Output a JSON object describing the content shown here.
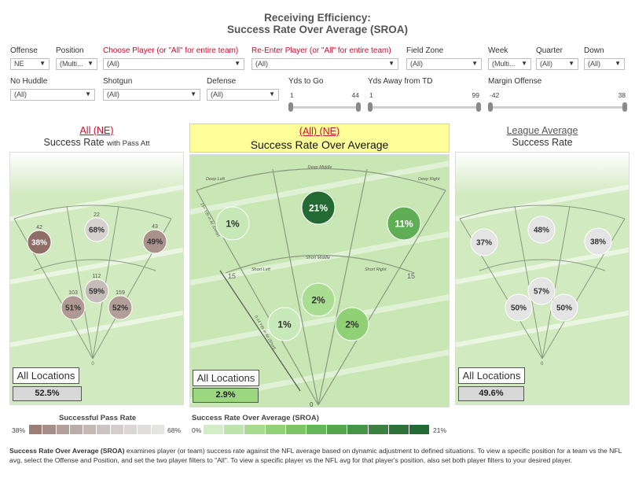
{
  "header": {
    "title_line1": "Receiving Efficiency:",
    "title_line2": "Success Rate Over Average (SROA)"
  },
  "filters_row1": [
    {
      "label": "Offense",
      "value": "NE",
      "red": false
    },
    {
      "label": "Position",
      "value": "(Multi...",
      "red": false
    },
    {
      "label": "Choose Player (or \"All\" for entire team)",
      "value": "(All)",
      "red": true
    },
    {
      "label": "Re-Enter Player (or \"All\" for entire team)",
      "value": "(All)",
      "red": true
    },
    {
      "label": "Field Zone",
      "value": "(All)",
      "red": false
    },
    {
      "label": "Week",
      "value": "(Multi...",
      "red": false
    },
    {
      "label": "Quarter",
      "value": "(All)",
      "red": false
    },
    {
      "label": "Down",
      "value": "(All)",
      "red": false
    }
  ],
  "filters_row2": [
    {
      "label": "No Huddle",
      "value": "(All)"
    },
    {
      "label": "Shotgun",
      "value": "(All)"
    },
    {
      "label": "Defense",
      "value": "(All)"
    }
  ],
  "sliders": [
    {
      "label": "Yds to Go",
      "min": "1",
      "max": "44"
    },
    {
      "label": "Yds Away from TD",
      "min": "1",
      "max": "99"
    },
    {
      "label": "Margin Offense",
      "min": "-42",
      "max": "38"
    }
  ],
  "panels": {
    "left": {
      "title_link": "All (NE)",
      "subtitle": "Success Rate",
      "subtitle_small": "with Pass Att",
      "all_locations_label": "All Locations",
      "total": "52.5%",
      "zones": [
        {
          "id": "deep-left",
          "pct": "38%",
          "count": "42",
          "pct_value": 38,
          "color": "#8e6e66"
        },
        {
          "id": "deep-middle",
          "pct": "68%",
          "count": "22",
          "pct_value": 68,
          "color": "#d6d2d0"
        },
        {
          "id": "deep-right",
          "pct": "49%",
          "count": "43",
          "pct_value": 49,
          "color": "#aa918b"
        },
        {
          "id": "short-middle",
          "pct": "59%",
          "count": "112",
          "pct_value": 59,
          "color": "#c6bdba"
        },
        {
          "id": "short-left",
          "pct": "51%",
          "count": "103",
          "pct_value": 51,
          "color": "#b09993"
        },
        {
          "id": "short-right",
          "pct": "52%",
          "count": "159",
          "pct_value": 52,
          "color": "#b29d98"
        }
      ]
    },
    "center": {
      "title_link": "(All) (NE)",
      "subtitle": "Success Rate Over Average",
      "all_locations_label": "All Locations",
      "total": "2.9%",
      "total_bg": "#9ad77f",
      "zones": [
        {
          "id": "deep-left",
          "pct": "1%",
          "pct_value": 1,
          "color": "#c6e8b6"
        },
        {
          "id": "deep-middle",
          "pct": "21%",
          "pct_value": 21,
          "color": "#236a35"
        },
        {
          "id": "deep-right",
          "pct": "11%",
          "pct_value": 11,
          "color": "#5fae55"
        },
        {
          "id": "short-middle",
          "pct": "2%",
          "pct_value": 2,
          "color": "#a9dd92"
        },
        {
          "id": "short-left",
          "pct": "1%",
          "pct_value": 1,
          "color": "#c8e9b9"
        },
        {
          "id": "short-right",
          "pct": "2%",
          "pct_value": 2,
          "color": "#8fd174"
        }
      ],
      "field_labels": {
        "deep_middle": "Deep Middle",
        "deep_left": "Deep Left",
        "deep_right": "Deep Right",
        "short_left": "Short Left",
        "short_middle": "Short Middle",
        "short_right": "Short Right",
        "yard_15_left": "15",
        "yard_15_right": "15",
        "bottom_0": "0",
        "arrow_15": "15+ Yds in Air (Deep)",
        "arrow_0": "0-14 Yds in Air (Short)"
      }
    },
    "right": {
      "title_link": "League Average",
      "subtitle": "Success Rate",
      "all_locations_label": "All Locations",
      "total": "49.6%",
      "zones": [
        {
          "id": "deep-left",
          "pct": "37%"
        },
        {
          "id": "deep-middle",
          "pct": "48%"
        },
        {
          "id": "deep-right",
          "pct": "38%"
        },
        {
          "id": "short-middle",
          "pct": "57%"
        },
        {
          "id": "short-left",
          "pct": "50%"
        },
        {
          "id": "short-right",
          "pct": "50%"
        }
      ]
    }
  },
  "legends": {
    "left": {
      "title": "Successful Pass Rate",
      "min": "38%",
      "max": "68%",
      "colors": [
        "#9c7e76",
        "#a78f89",
        "#b3a09b",
        "#bcaca8",
        "#c5b9b6",
        "#cdc4c1",
        "#d4cdcb",
        "#dbd6d4",
        "#e1dedc",
        "#e6e4e3"
      ]
    },
    "center": {
      "title": "Success Rate Over Average (SROA)",
      "min": "0%",
      "max": "21%",
      "colors": [
        "#d3eec6",
        "#bde5ab",
        "#a7dc90",
        "#91d177",
        "#7cc466",
        "#68b65a",
        "#56a64f",
        "#479447",
        "#3a8240",
        "#2e7139",
        "#236a35"
      ]
    }
  },
  "footnote": {
    "bold": "Success Rate Over Average (SROA)",
    "text": " examines player (or team) success rate against the NFL average based on dynamic adjustment to defined situations. To view a specific position for a team vs the NFL avg, select the Offense and Position, and set the two player filters to \"All\". To view a specific player vs the NFL avg for that player's position, also set both player filters to your desired player."
  },
  "colors": {
    "link_red": "#c8102e",
    "highlight_yellow": "#ffff99",
    "field_green": "#c9e7b4",
    "field_line": "#8a9a82"
  }
}
